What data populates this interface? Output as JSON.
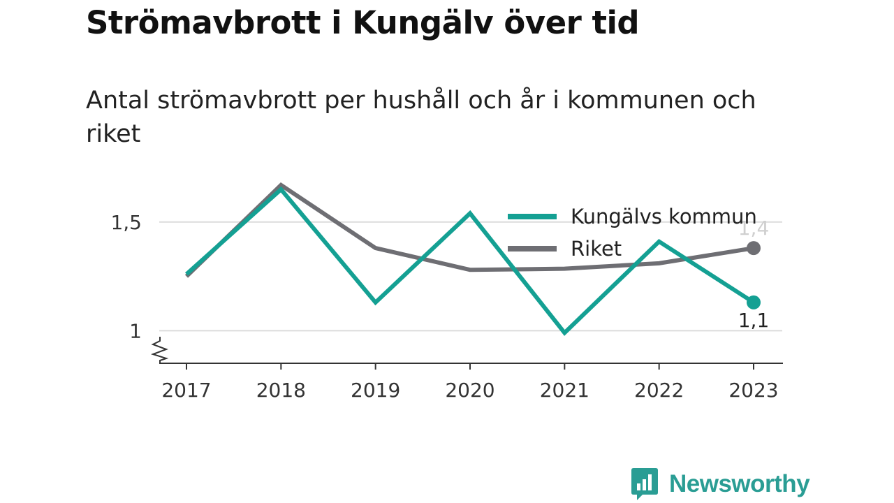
{
  "header": {
    "title": "Strömavbrott i Kungälv över tid",
    "subtitle": "Antal strömavbrott per hushåll och år i kommunen och riket"
  },
  "brand": {
    "name": "Newsworthy",
    "icon": "newsworthy-logo-icon",
    "color": "#2a9d94"
  },
  "chart_data": {
    "type": "line",
    "categories": [
      "2017",
      "2018",
      "2019",
      "2020",
      "2021",
      "2022",
      "2023"
    ],
    "series": [
      {
        "name": "Kungälvs kommun",
        "color": "#14a093",
        "values": [
          1.26,
          1.65,
          1.13,
          1.54,
          0.99,
          1.41,
          1.13
        ],
        "end_label": "1,1"
      },
      {
        "name": "Riket",
        "color": "#6e6e73",
        "values": [
          1.25,
          1.67,
          1.38,
          1.28,
          1.285,
          1.31,
          1.38
        ],
        "end_label": "1,4"
      }
    ],
    "ylim": [
      0.85,
      1.75
    ],
    "yticks": [
      {
        "value": 1,
        "label": "1"
      },
      {
        "value": 1.5,
        "label": "1,5"
      }
    ],
    "y_axis_break": true,
    "grid": true,
    "legend": "top-right",
    "xlabel": "",
    "ylabel": ""
  }
}
